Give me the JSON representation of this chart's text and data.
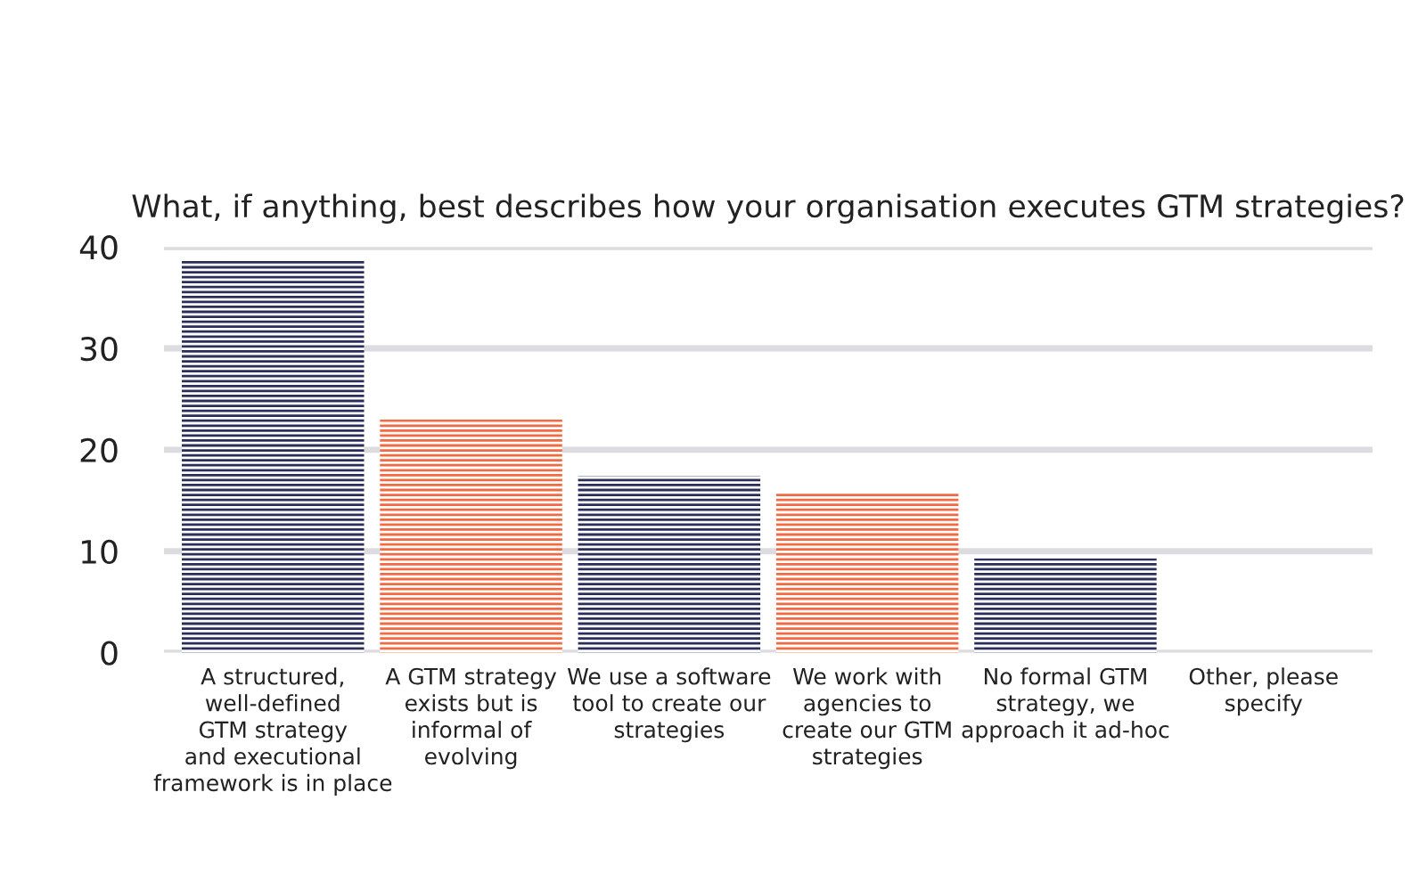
{
  "chart_data": {
    "type": "bar",
    "title": "What, if anything, best describes how your organisation executes GTM strategies?",
    "categories": [
      "A structured,\nwell-defined\nGTM strategy\nand executional\nframework is in place",
      "A GTM strategy\nexists but is\ninformal of\nevolving",
      "We use a software\ntool to create our\nstrategies",
      "We work with\nagencies to\ncreate our GTM\nstrategies",
      "No formal GTM\nstrategy, we\napproach it ad-hoc",
      "Other, please\nspecify"
    ],
    "values": [
      38.7,
      23.0,
      17.4,
      15.8,
      9.3,
      0
    ],
    "colors": [
      "#2b2e5a",
      "#f26a44",
      "#2b2e5a",
      "#f26a44",
      "#2b2e5a",
      "#2b2e5a"
    ],
    "ylim": [
      0,
      40
    ],
    "yticks": [
      0,
      10,
      20,
      30,
      40
    ],
    "grid": "y"
  }
}
